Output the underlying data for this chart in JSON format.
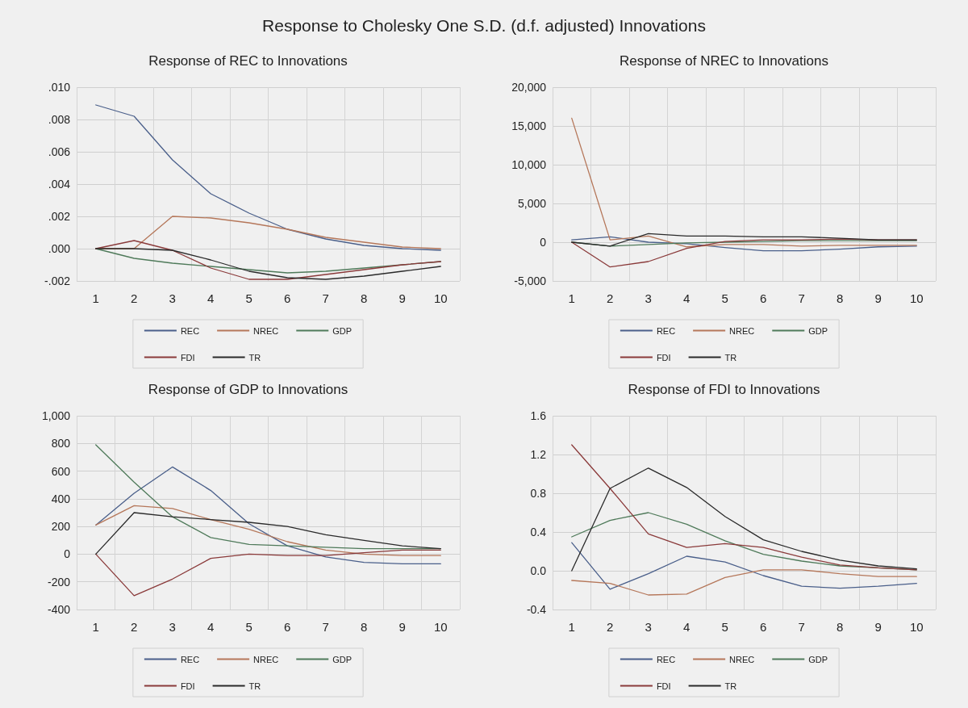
{
  "chart_data": [
    {
      "type": "other",
      "title": "Response to Cholesky One S.D. (d.f. adjusted) Innovations"
    },
    {
      "type": "line",
      "title": "Response of REC to Innovations",
      "categories": [
        "1",
        "2",
        "3",
        "4",
        "5",
        "6",
        "7",
        "8",
        "9",
        "10"
      ],
      "series": [
        {
          "name": "REC",
          "color": "#4a5f8a",
          "values": [
            0.0089,
            0.0082,
            0.0055,
            0.0034,
            0.0022,
            0.0012,
            0.0006,
            0.0002,
            0.0,
            -0.0001
          ]
        },
        {
          "name": "NREC",
          "color": "#b5775a",
          "values": [
            0,
            0,
            0.002,
            0.0019,
            0.0016,
            0.0012,
            0.0007,
            0.0004,
            0.0001,
            0.0
          ]
        },
        {
          "name": "GDP",
          "color": "#4f7a5a",
          "values": [
            0,
            -0.0006,
            -0.0009,
            -0.0011,
            -0.0013,
            -0.0015,
            -0.0014,
            -0.0012,
            -0.001,
            -0.0008
          ]
        },
        {
          "name": "FDI",
          "color": "#8a3a3a",
          "values": [
            0,
            0.0005,
            -0.0001,
            -0.0012,
            -0.0019,
            -0.0019,
            -0.0016,
            -0.0013,
            -0.001,
            -0.0008
          ]
        },
        {
          "name": "TR",
          "color": "#2a2a2a",
          "values": [
            0,
            0,
            -0.0001,
            -0.0007,
            -0.0014,
            -0.0018,
            -0.0019,
            -0.0017,
            -0.0014,
            -0.0011
          ]
        }
      ],
      "ylim": [
        -0.002,
        0.01
      ],
      "yticks": [
        {
          "value": -0.002,
          "label": "-.002"
        },
        {
          "value": 0,
          "label": ".000"
        },
        {
          "value": 0.002,
          "label": ".002"
        },
        {
          "value": 0.004,
          "label": ".004"
        },
        {
          "value": 0.006,
          "label": ".006"
        },
        {
          "value": 0.008,
          "label": ".008"
        },
        {
          "value": 0.01,
          "label": ".010"
        }
      ],
      "grid": true,
      "legend": "bottom",
      "marker": "none",
      "line_style": "solid"
    },
    {
      "type": "line",
      "title": "Response of NREC to Innovations",
      "categories": [
        "1",
        "2",
        "3",
        "4",
        "5",
        "6",
        "7",
        "8",
        "9",
        "10"
      ],
      "series": [
        {
          "name": "REC",
          "color": "#4a5f8a",
          "values": [
            300,
            700,
            0,
            -200,
            -700,
            -1100,
            -1100,
            -900,
            -600,
            -500
          ]
        },
        {
          "name": "NREC",
          "color": "#b5775a",
          "values": [
            16000,
            300,
            800,
            -600,
            -300,
            -300,
            -500,
            -400,
            -400,
            -400
          ]
        },
        {
          "name": "GDP",
          "color": "#4f7a5a",
          "values": [
            0,
            -500,
            -300,
            -100,
            0,
            100,
            200,
            200,
            200,
            200
          ]
        },
        {
          "name": "FDI",
          "color": "#8a3a3a",
          "values": [
            0,
            -3200,
            -2500,
            -800,
            100,
            300,
            300,
            400,
            300,
            300
          ]
        },
        {
          "name": "TR",
          "color": "#2a2a2a",
          "values": [
            0,
            -500,
            1100,
            800,
            800,
            700,
            700,
            500,
            300,
            300
          ]
        }
      ],
      "ylim": [
        -5000,
        20000
      ],
      "yticks": [
        {
          "value": -5000,
          "label": "-5,000"
        },
        0,
        {
          "value": 5000,
          "label": "5,000"
        },
        {
          "value": 10000,
          "label": "10,000"
        },
        {
          "value": 15000,
          "label": "15,000"
        },
        {
          "value": 20000,
          "label": "20,000"
        }
      ],
      "grid": true,
      "legend": "bottom",
      "marker": "none",
      "line_style": "solid"
    },
    {
      "type": "line",
      "title": "Response of GDP to Innovations",
      "categories": [
        "1",
        "2",
        "3",
        "4",
        "5",
        "6",
        "7",
        "8",
        "9",
        "10"
      ],
      "series": [
        {
          "name": "REC",
          "color": "#4a5f8a",
          "values": [
            210,
            440,
            630,
            460,
            220,
            60,
            -20,
            -60,
            -70,
            -70
          ]
        },
        {
          "name": "NREC",
          "color": "#b5775a",
          "values": [
            210,
            350,
            330,
            250,
            180,
            90,
            30,
            0,
            -10,
            -10
          ]
        },
        {
          "name": "GDP",
          "color": "#4f7a5a",
          "values": [
            790,
            520,
            270,
            120,
            70,
            60,
            50,
            40,
            40,
            40
          ]
        },
        {
          "name": "FDI",
          "color": "#8a3a3a",
          "values": [
            0,
            -300,
            -180,
            -30,
            0,
            -10,
            -10,
            10,
            30,
            30
          ]
        },
        {
          "name": "TR",
          "color": "#2a2a2a",
          "values": [
            0,
            300,
            270,
            250,
            230,
            200,
            140,
            100,
            60,
            40
          ]
        }
      ],
      "ylim": [
        -400,
        1000
      ],
      "yticks": [
        -400,
        -200,
        0,
        200,
        400,
        600,
        800,
        {
          "value": 1000,
          "label": "1,000"
        }
      ],
      "grid": true,
      "legend": "bottom",
      "marker": "none",
      "line_style": "solid"
    },
    {
      "type": "line",
      "title": "Response of FDI to Innovations",
      "categories": [
        "1",
        "2",
        "3",
        "4",
        "5",
        "6",
        "7",
        "8",
        "9",
        "10"
      ],
      "series": [
        {
          "name": "REC",
          "color": "#4a5f8a",
          "values": [
            0.29,
            -0.19,
            -0.03,
            0.15,
            0.09,
            -0.05,
            -0.16,
            -0.18,
            -0.16,
            -0.13
          ]
        },
        {
          "name": "NREC",
          "color": "#b5775a",
          "values": [
            -0.1,
            -0.13,
            -0.25,
            -0.24,
            -0.07,
            0.01,
            0.01,
            -0.03,
            -0.06,
            -0.06
          ]
        },
        {
          "name": "GDP",
          "color": "#4f7a5a",
          "values": [
            0.35,
            0.52,
            0.6,
            0.48,
            0.31,
            0.17,
            0.1,
            0.05,
            0.03,
            0.01
          ]
        },
        {
          "name": "FDI",
          "color": "#8a3a3a",
          "values": [
            1.3,
            0.85,
            0.38,
            0.24,
            0.28,
            0.24,
            0.14,
            0.06,
            0.03,
            0.01
          ]
        },
        {
          "name": "TR",
          "color": "#2a2a2a",
          "values": [
            0,
            0.85,
            1.06,
            0.86,
            0.56,
            0.32,
            0.2,
            0.11,
            0.05,
            0.02
          ]
        }
      ],
      "ylim": [
        -0.4,
        1.6
      ],
      "yticks": [
        -0.4,
        {
          "value": 0,
          "label": "0.0"
        },
        0.4,
        0.8,
        1.2,
        1.6
      ],
      "grid": true,
      "legend": "bottom",
      "marker": "none",
      "line_style": "solid"
    }
  ]
}
